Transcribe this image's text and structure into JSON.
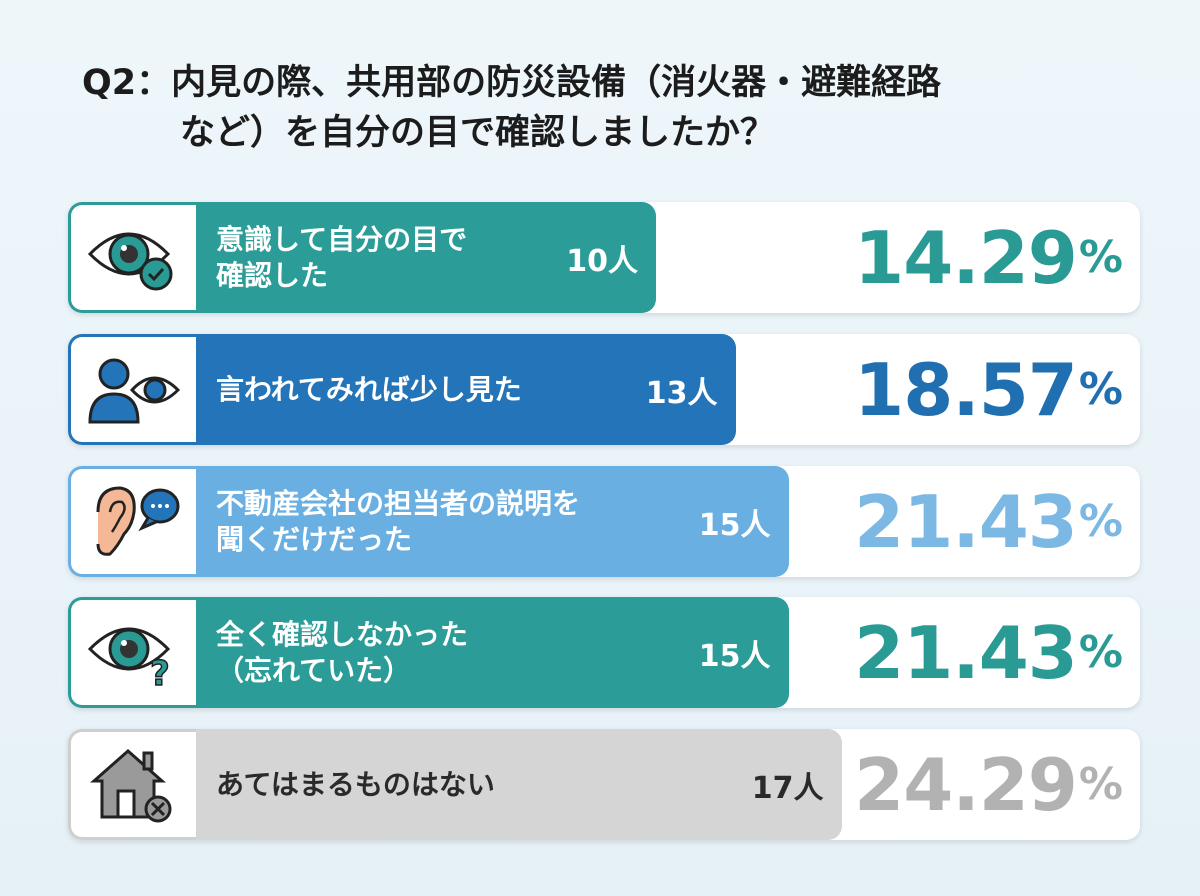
{
  "title": {
    "line1": "Q2：内見の際、共用部の防災設備（消火器・避難経路",
    "line2": "など）を自分の目で確認しましたか？"
  },
  "chart_data": {
    "type": "bar",
    "title": "Q2：内見の際、共用部の防災設備（消火器・避難経路など）を自分の目で確認しましたか？",
    "categories": [
      "意識して自分の目で確認した",
      "言われてみれば少し見た",
      "不動産会社の担当者の説明を聞くだけだった",
      "全く確認しなかった（忘れていた）",
      "あてはまるものはない"
    ],
    "series": [
      {
        "name": "人数",
        "values": [
          10,
          13,
          15,
          15,
          17
        ]
      },
      {
        "name": "割合(%)",
        "values": [
          14.29,
          18.57,
          21.43,
          21.43,
          24.29
        ]
      }
    ],
    "xlabel": "",
    "ylabel": ""
  },
  "rows": [
    {
      "label1": "意識して自分の目で",
      "label2": "確認した",
      "count": "10人",
      "pct": "14.29",
      "unit": "%",
      "value": 10,
      "icon": "eye-check-icon",
      "bar": "#2b9c97",
      "pctColor": "#2a9a94",
      "textColor": "#ffffff"
    },
    {
      "label1": "言われてみれば少し見た",
      "label2": "",
      "count": "13人",
      "pct": "18.57",
      "unit": "%",
      "value": 13,
      "icon": "person-eye-icon",
      "bar": "#2474b9",
      "pctColor": "#1f6fb1",
      "textColor": "#ffffff"
    },
    {
      "label1": "不動産会社の担当者の説明を",
      "label2": "聞くだけだった",
      "count": "15人",
      "pct": "21.43",
      "unit": "%",
      "value": 15,
      "icon": "ear-speech-icon",
      "bar": "#6aafe2",
      "pctColor": "#7cb8e4",
      "textColor": "#ffffff"
    },
    {
      "label1": "全く確認しなかった",
      "label2": "（忘れていた）",
      "count": "15人",
      "pct": "21.43",
      "unit": "%",
      "value": 15,
      "icon": "eye-question-icon",
      "bar": "#2b9c97",
      "pctColor": "#2a9a94",
      "textColor": "#ffffff"
    },
    {
      "label1": "あてはまるものはない",
      "label2": "",
      "count": "17人",
      "pct": "24.29",
      "unit": "%",
      "value": 17,
      "icon": "house-x-icon",
      "bar": "#d5d5d5",
      "pctColor": "#b2b2b2",
      "textColor": "#2a2a2a"
    }
  ]
}
